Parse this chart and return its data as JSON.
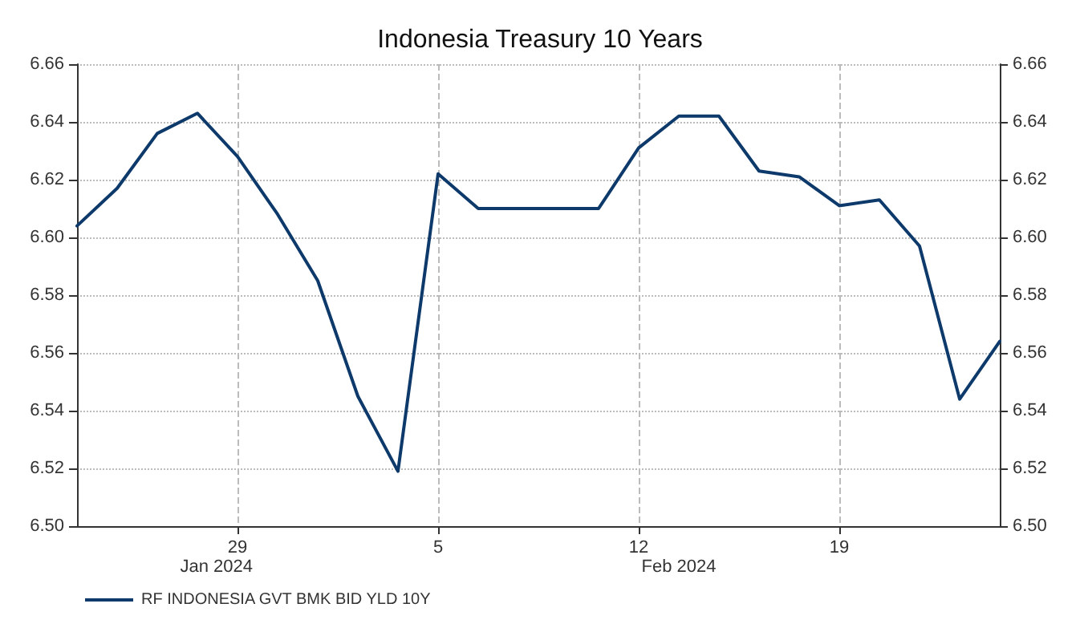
{
  "chart_data": {
    "type": "line",
    "title": "Indonesia Treasury 10 Years",
    "categories": [
      null,
      null,
      null,
      null,
      "29",
      null,
      null,
      null,
      null,
      "5",
      null,
      null,
      null,
      null,
      "12",
      null,
      null,
      null,
      null,
      "19",
      null,
      null,
      null,
      null
    ],
    "series": [
      {
        "name": "RF INDONESIA GVT BMK BID YLD 10Y",
        "color": "#0d3a6b",
        "values": [
          6.604,
          6.617,
          6.636,
          6.643,
          6.628,
          6.608,
          6.585,
          6.545,
          6.519,
          6.622,
          6.61,
          6.61,
          6.61,
          6.61,
          6.631,
          6.642,
          6.642,
          6.623,
          6.621,
          6.611,
          6.613,
          6.597,
          6.544,
          6.564
        ]
      }
    ],
    "ylim": [
      6.5,
      6.66
    ],
    "yticks": [
      {
        "value": 6.5,
        "label": "6.50"
      },
      {
        "value": 6.52,
        "label": "6.52"
      },
      {
        "value": 6.54,
        "label": "6.54"
      },
      {
        "value": 6.56,
        "label": "6.56"
      },
      {
        "value": 6.58,
        "label": "6.58"
      },
      {
        "value": 6.6,
        "label": "6.60"
      },
      {
        "value": 6.62,
        "label": "6.62"
      },
      {
        "value": 6.64,
        "label": "6.64"
      },
      {
        "value": 6.66,
        "label": "6.66"
      }
    ],
    "y2lim": [
      6.5,
      6.66
    ],
    "y2ticks": [
      {
        "value": 6.5,
        "label": "6.50"
      },
      {
        "value": 6.52,
        "label": "6.52"
      },
      {
        "value": 6.54,
        "label": "6.54"
      },
      {
        "value": 6.56,
        "label": "6.56"
      },
      {
        "value": 6.58,
        "label": "6.58"
      },
      {
        "value": 6.6,
        "label": "6.60"
      },
      {
        "value": 6.62,
        "label": "6.62"
      },
      {
        "value": 6.64,
        "label": "6.64"
      },
      {
        "value": 6.66,
        "label": "6.66"
      }
    ],
    "annotations": [
      "Jan 2024",
      "Feb 2024"
    ],
    "grid": true,
    "legend": "bottom left",
    "marker": "none",
    "line_style": "solid"
  }
}
